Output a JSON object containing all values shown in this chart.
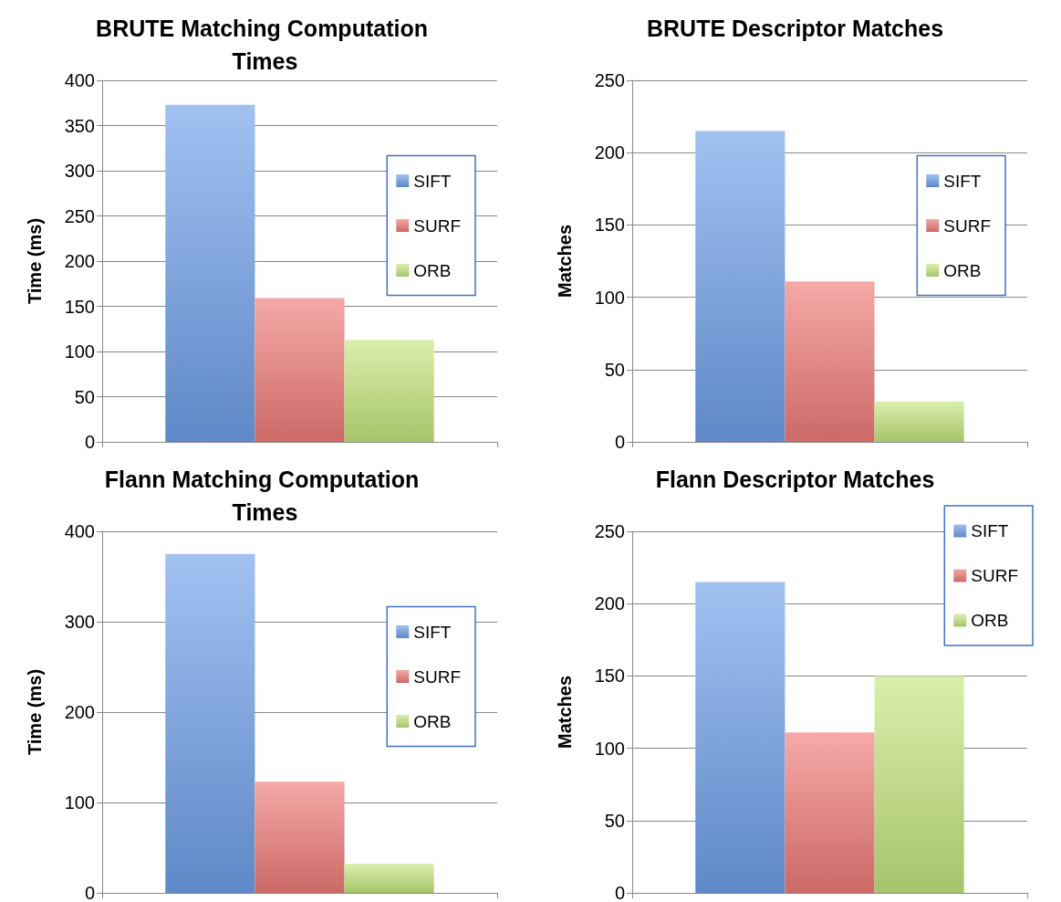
{
  "chart_data": [
    {
      "type": "bar",
      "title": "BRUTE Matching Computation Times",
      "ylabel": "Time (ms)",
      "categories": [
        null
      ],
      "series": [
        {
          "name": "SIFT",
          "color": "#6fa0ea",
          "values": [
            373
          ]
        },
        {
          "name": "SURF",
          "color": "#ef7b78",
          "values": [
            159
          ]
        },
        {
          "name": "ORB",
          "color": "#c5e67e",
          "values": [
            113
          ]
        }
      ],
      "ylim": [
        0,
        400
      ],
      "yticks": [
        0,
        50,
        100,
        150,
        200,
        250,
        300,
        350,
        400
      ],
      "grid": "y",
      "legend": "right",
      "tick_labels": "y"
    },
    {
      "type": "bar",
      "title": "BRUTE Descriptor Matches",
      "ylabel": "Matches",
      "categories": [
        null
      ],
      "series": [
        {
          "name": "SIFT",
          "color": "#6fa0ea",
          "values": [
            215
          ]
        },
        {
          "name": "SURF",
          "color": "#ef7b78",
          "values": [
            111
          ]
        },
        {
          "name": "ORB",
          "color": "#c5e67e",
          "values": [
            28
          ]
        }
      ],
      "ylim": [
        0,
        250
      ],
      "yticks": [
        0,
        50,
        100,
        150,
        200,
        250
      ],
      "grid": "y",
      "legend": "right",
      "tick_labels": "y"
    },
    {
      "type": "bar",
      "title": "Flann Matching Computation Times",
      "ylabel": "Time (ms)",
      "categories": [
        null
      ],
      "series": [
        {
          "name": "SIFT",
          "color": "#6fa0ea",
          "values": [
            375
          ]
        },
        {
          "name": "SURF",
          "color": "#ef7b78",
          "values": [
            123
          ]
        },
        {
          "name": "ORB",
          "color": "#c5e67e",
          "values": [
            32
          ]
        }
      ],
      "ylim": [
        0,
        400
      ],
      "yticks": [
        0,
        100,
        200,
        300,
        400
      ],
      "grid": "y",
      "legend": "right",
      "tick_labels": "y"
    },
    {
      "type": "bar",
      "title": "Flann Descriptor Matches",
      "ylabel": "Matches",
      "categories": [
        null
      ],
      "series": [
        {
          "name": "SIFT",
          "color": "#6fa0ea",
          "values": [
            215
          ]
        },
        {
          "name": "SURF",
          "color": "#ef7b78",
          "values": [
            111
          ]
        },
        {
          "name": "ORB",
          "color": "#c5e67e",
          "values": [
            150
          ]
        }
      ],
      "ylim": [
        0,
        250
      ],
      "yticks": [
        0,
        50,
        100,
        150,
        200,
        250
      ],
      "grid": "y",
      "legend": "top right",
      "tick_labels": "y"
    }
  ]
}
